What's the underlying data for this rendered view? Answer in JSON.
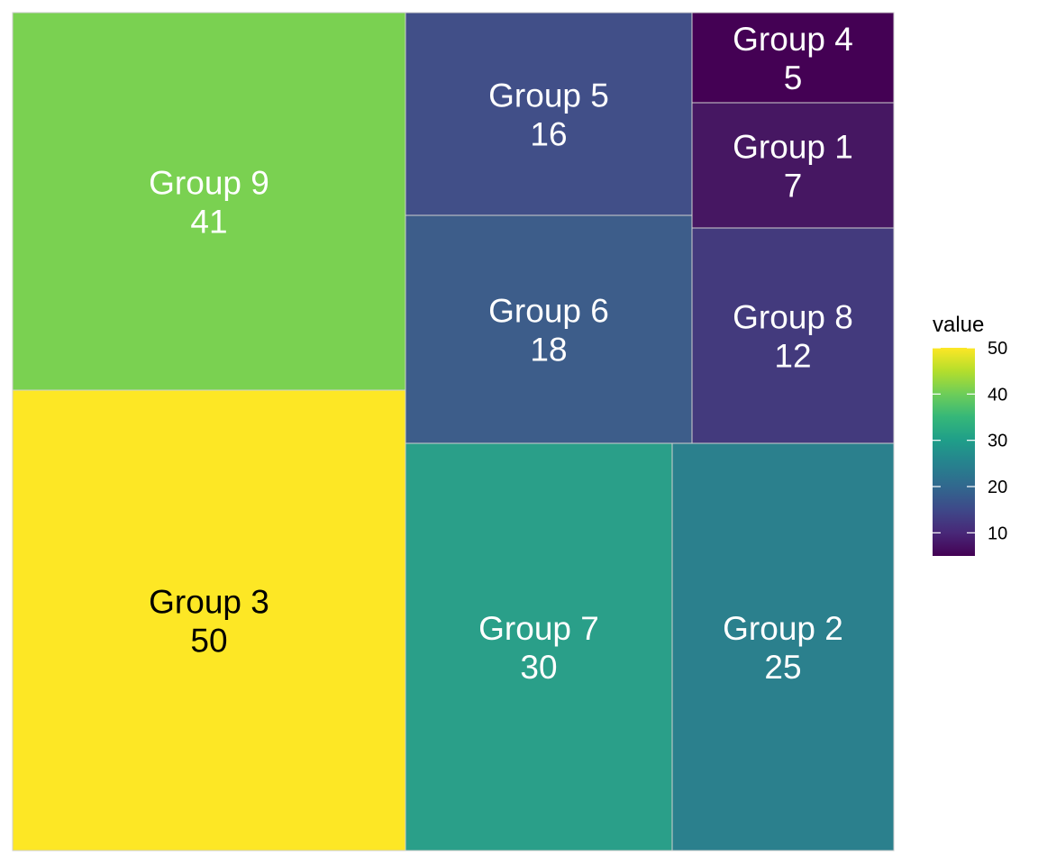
{
  "chart_data": {
    "type": "treemap",
    "title": "",
    "tiles": [
      {
        "name": "Group 3",
        "value": 50,
        "color": "#FDE725",
        "label_color": "#000000"
      },
      {
        "name": "Group 9",
        "value": 41,
        "color": "#7AD151",
        "label_color": "#ffffff"
      },
      {
        "name": "Group 7",
        "value": 30,
        "color": "#2A9F89",
        "label_color": "#ffffff"
      },
      {
        "name": "Group 2",
        "value": 25,
        "color": "#2B808D",
        "label_color": "#ffffff"
      },
      {
        "name": "Group 6",
        "value": 18,
        "color": "#3D5D8A",
        "label_color": "#ffffff"
      },
      {
        "name": "Group 5",
        "value": 16,
        "color": "#414F88",
        "label_color": "#ffffff"
      },
      {
        "name": "Group 8",
        "value": 12,
        "color": "#433A7D",
        "label_color": "#ffffff"
      },
      {
        "name": "Group 1",
        "value": 7,
        "color": "#461762",
        "label_color": "#ffffff"
      },
      {
        "name": "Group 4",
        "value": 5,
        "color": "#440154",
        "label_color": "#ffffff"
      }
    ],
    "legend": {
      "title": "value",
      "position": "right",
      "range": [
        5,
        50
      ],
      "ticks": [
        10,
        20,
        30,
        40,
        50
      ],
      "colors": [
        "#440154",
        "#482878",
        "#3E4989",
        "#31688E",
        "#26828E",
        "#1F9E89",
        "#35B779",
        "#6DCD59",
        "#B4DE2C",
        "#FDE725"
      ]
    }
  }
}
